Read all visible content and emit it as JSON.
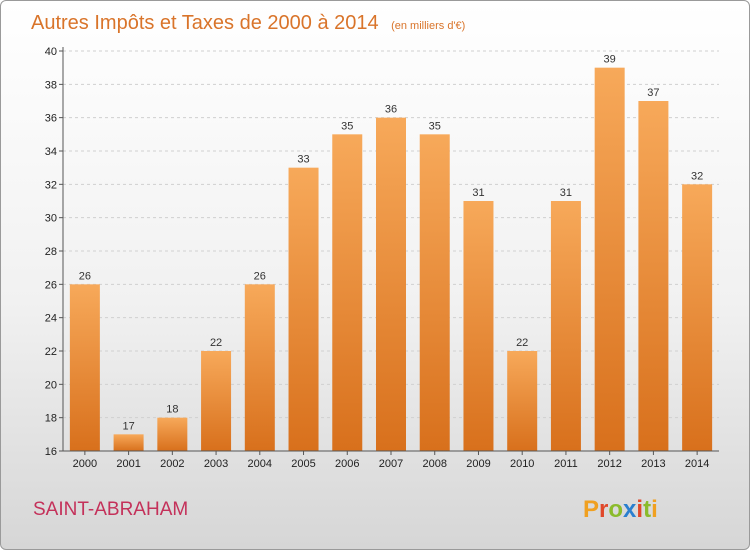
{
  "title": "Autres Impôts et Taxes de 2000 à 2014",
  "subtitle": "(en milliers d'€)",
  "commune": "SAINT-ABRAHAM",
  "brand": {
    "letters": [
      "P",
      "r",
      "o",
      "x",
      "i",
      "t",
      "i"
    ],
    "colors": [
      "#f0a020",
      "#e0482a",
      "#8bbb2c",
      "#2a7fcf",
      "#e0482a",
      "#8bbb2c",
      "#f0a020"
    ]
  },
  "colors": {
    "bar_light": "#f7a95a",
    "bar_dark": "#d8701c",
    "grid": "#d0d0d0",
    "axis": "#555555"
  },
  "chart_data": {
    "type": "bar",
    "categories": [
      "2000",
      "2001",
      "2002",
      "2003",
      "2004",
      "2005",
      "2006",
      "2007",
      "2008",
      "2009",
      "2010",
      "2011",
      "2012",
      "2013",
      "2014"
    ],
    "values": [
      26,
      17,
      18,
      22,
      26,
      33,
      35,
      36,
      35,
      31,
      22,
      31,
      39,
      37,
      32
    ],
    "ylim": [
      16,
      40
    ],
    "yticks": [
      16,
      18,
      20,
      22,
      24,
      26,
      28,
      30,
      32,
      34,
      36,
      38,
      40
    ],
    "grid": true,
    "data_labels": true
  }
}
